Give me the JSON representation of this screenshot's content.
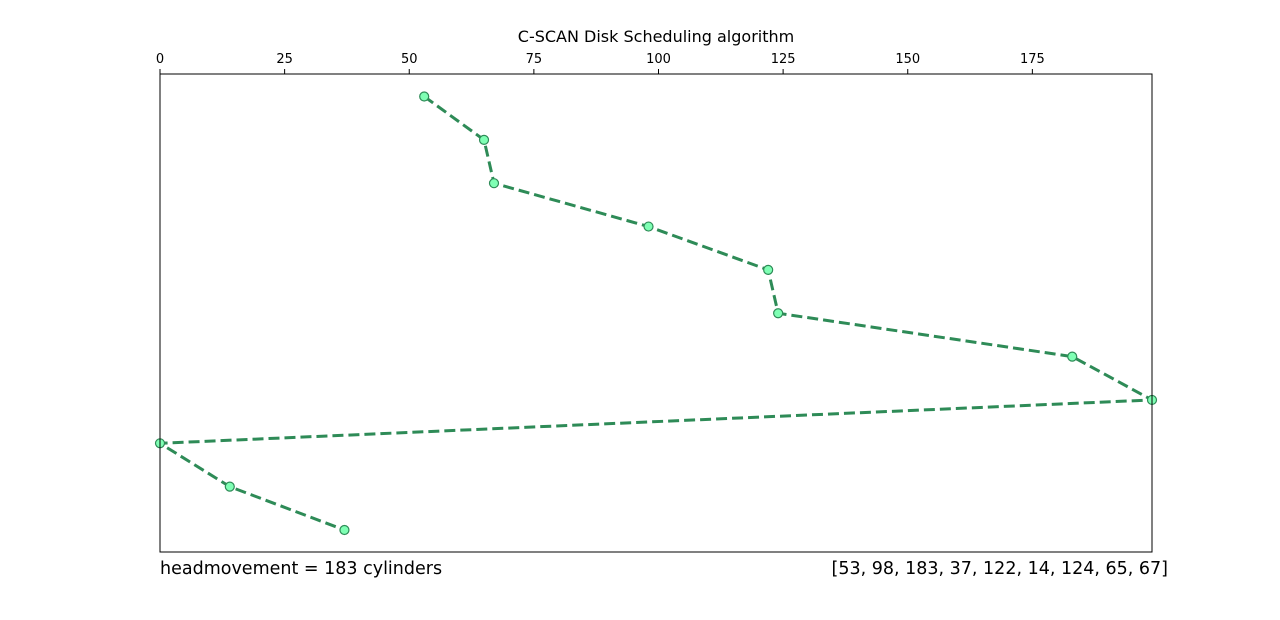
{
  "chart_data": {
    "type": "line",
    "title": "C-SCAN Disk Scheduling algorithm",
    "xlabel": "",
    "ylabel": "",
    "x_axis_position": "top",
    "xlim": [
      0,
      199
    ],
    "xticks": [
      0,
      25,
      50,
      75,
      100,
      125,
      150,
      175
    ],
    "y_axis_visible": false,
    "grid": false,
    "series": [
      {
        "x": [
          53,
          65,
          67,
          98,
          122,
          124,
          183,
          199,
          0,
          14,
          37
        ],
        "y": [
          0,
          1,
          2,
          3,
          4,
          5,
          6,
          7,
          8,
          9,
          10
        ],
        "line_style": "dashed",
        "line_color": "#2e8b57",
        "marker": "circle",
        "marker_fill": "#7fffb4",
        "marker_edge": "#2e8b57"
      }
    ],
    "annotations": {
      "left": "headmovement = 183 cylinders",
      "right": "[53, 98, 183, 37, 122, 14, 124, 65, 67]"
    }
  }
}
